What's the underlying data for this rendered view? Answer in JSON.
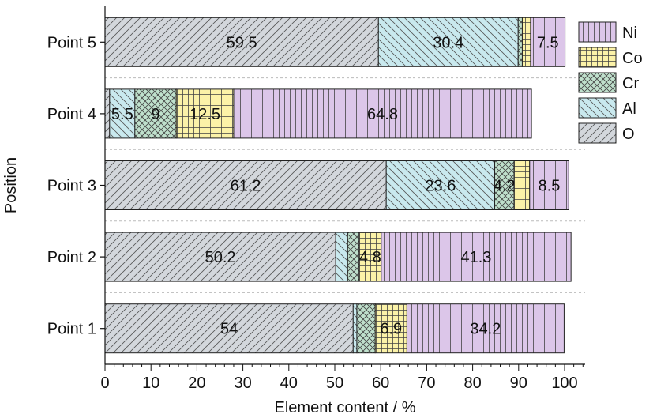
{
  "chart_data": {
    "type": "bar",
    "orientation": "horizontal",
    "stacked": true,
    "xlabel": "Element content / %",
    "ylabel": "Position",
    "xlim": [
      0,
      102
    ],
    "x_ticks": [
      "0",
      "10",
      "20",
      "30",
      "40",
      "50",
      "60",
      "70",
      "80",
      "90",
      "100"
    ],
    "categories": [
      "Point 1",
      "Point 2",
      "Point 3",
      "Point 4",
      "Point 5"
    ],
    "series": [
      {
        "name": "O",
        "color": "#d3d7dc",
        "pattern": "diagonal-forward",
        "values": [
          54,
          50.2,
          61.2,
          1,
          59.5
        ],
        "labels": [
          "54",
          "50.2",
          "61.2",
          "",
          "59.5"
        ]
      },
      {
        "name": "Al",
        "color": "#c9e9ee",
        "pattern": "diagonal-back",
        "values": [
          0.8,
          2.6,
          23.6,
          5.5,
          30.4
        ],
        "labels": [
          "",
          "",
          "23.6",
          "5.5",
          "30.4"
        ]
      },
      {
        "name": "Cr",
        "color": "#bfe0cc",
        "pattern": "crosshatch",
        "values": [
          4,
          2.5,
          4.2,
          9,
          0.9
        ],
        "labels": [
          "",
          "",
          "4.2",
          "9",
          ""
        ]
      },
      {
        "name": "Co",
        "color": "#fbf2a8",
        "pattern": "grid",
        "values": [
          6.9,
          4.8,
          3.4,
          12.5,
          1.8
        ],
        "labels": [
          "6.9",
          "4.8",
          "",
          "12.5",
          ""
        ]
      },
      {
        "name": "Ni",
        "color": "#dcc6e9",
        "pattern": "vertical",
        "values": [
          34.2,
          41.3,
          8.5,
          64.8,
          7.5
        ],
        "labels": [
          "34.2",
          "41.3",
          "8.5",
          "64.8",
          "7.5"
        ]
      }
    ],
    "legend": {
      "placement": "top-right",
      "order": [
        "Ni",
        "Co",
        "Cr",
        "Al",
        "O"
      ]
    },
    "grid": {
      "y_dashed_separators": true,
      "x": false
    }
  }
}
